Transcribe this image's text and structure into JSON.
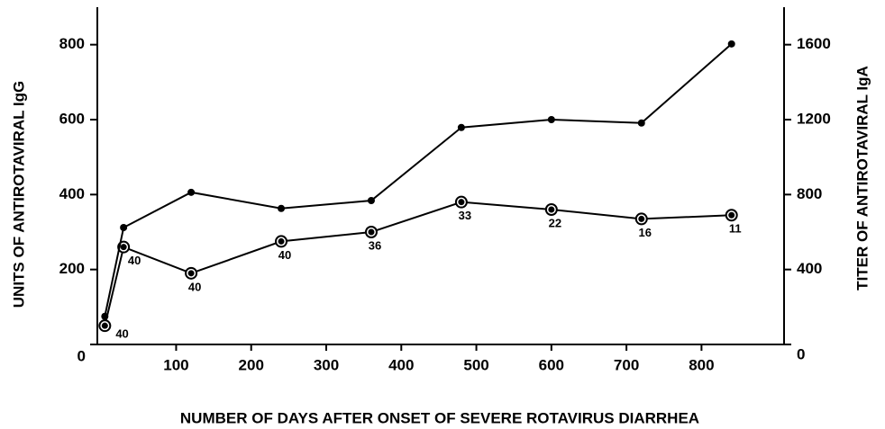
{
  "chart_data": {
    "type": "line",
    "x_label": "NUMBER OF DAYS AFTER ONSET OF SEVERE ROTAVIRUS DIARRHEA",
    "y_label": "UNITS OF ANTIROTAVIRAL IgG",
    "y2_label": "TITER OF ANTIROTAVIRAL IgA",
    "x": [
      5,
      30,
      120,
      240,
      360,
      480,
      600,
      720,
      840
    ],
    "series": [
      {
        "color": "#000000",
        "marker": "ring",
        "values": [
          50,
          260,
          190,
          275,
          300,
          380,
          360,
          335,
          345
        ],
        "point_labels": [
          40,
          40,
          40,
          40,
          36,
          33,
          22,
          16,
          11
        ]
      },
      {
        "color": "#000000",
        "marker": "dot",
        "axis": "y2",
        "values": [
          150,
          624,
          812,
          726,
          768,
          1158,
          1200,
          1182,
          1604
        ]
      }
    ],
    "xlim": [
      -5,
      910
    ],
    "xticks": [
      100,
      200,
      300,
      400,
      500,
      600,
      700,
      800
    ],
    "ylim": [
      0,
      900
    ],
    "yticks": [
      0,
      200,
      400,
      600,
      800
    ],
    "y2lim": [
      0,
      1800
    ],
    "y2ticks": [
      0,
      400,
      800,
      1200,
      1600
    ],
    "grid": false
  }
}
